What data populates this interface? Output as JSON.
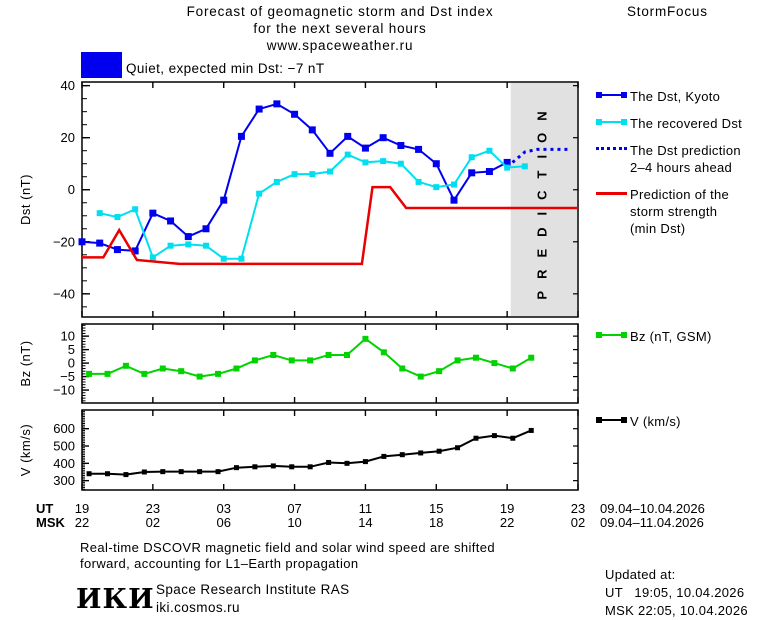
{
  "header": {
    "title_lines": [
      "Forecast of geomagnetic storm and Dst index",
      "for the next several hours",
      "www.spaceweather.ru"
    ],
    "brand": "StormFocus"
  },
  "banner": {
    "label": "Quiet, expected min Dst: −7 nT",
    "color": "#0000ef"
  },
  "legend": {
    "items": [
      {
        "label": "The Dst, Kyoto",
        "color": "#0000ef",
        "marker": "squares"
      },
      {
        "label": "The recovered Dst",
        "color": "#00dff0",
        "marker": "squares"
      },
      {
        "lines": [
          "The Dst prediction",
          "2–4 hours ahead"
        ],
        "color": "#0000ef",
        "marker": "dotted"
      },
      {
        "lines": [
          "Prediction of the",
          "storm strength",
          "(min Dst)"
        ],
        "color": "#ea0000",
        "marker": "line"
      },
      {
        "label": "Bz (nT, GSM)",
        "color": "#00d300",
        "marker": "squares"
      },
      {
        "label": "V (km/s)",
        "color": "#000000",
        "marker": "squares"
      }
    ]
  },
  "xaxis": {
    "ut_label": "UT",
    "msk_label": "MSK",
    "hours": [
      0,
      4,
      8,
      12,
      16,
      20,
      24,
      28
    ],
    "ut_ticks": [
      "19",
      "23",
      "03",
      "07",
      "11",
      "15",
      "19",
      "23"
    ],
    "msk_ticks": [
      "22",
      "02",
      "06",
      "10",
      "14",
      "18",
      "22",
      "02"
    ],
    "ut_range": "09.04–10.04.2026",
    "msk_range": "09.04–11.04.2026"
  },
  "chart_data": [
    {
      "type": "line",
      "ylabel": "Dst (nT)",
      "ylim": [
        -48.9,
        41.4
      ],
      "xlim_hours": [
        0,
        28
      ],
      "yticks": {
        "values": [
          40,
          20,
          0,
          -20,
          -40
        ],
        "labels": [
          "40",
          "20",
          "0",
          "−20",
          "−40"
        ],
        "minor_step": 5
      },
      "prediction_band": {
        "start_hour": 24.2,
        "end_hour": 28,
        "label": "PREDICTION",
        "fill": "#e1e1e1",
        "text_color": "#bdbdbd"
      },
      "series": [
        {
          "name": "The Dst, Kyoto",
          "color": "#0000ef",
          "marker_px": 7,
          "stroke_px": 2,
          "start_hour": 0,
          "step_hours": 1,
          "values": [
            -20,
            -20.5,
            -23,
            -23.5,
            -9,
            -12,
            -18,
            -15,
            -4,
            20.5,
            31,
            33,
            29,
            23,
            14,
            20.5,
            16,
            20,
            17,
            15.5,
            10,
            -4,
            6.5,
            7,
            10.5
          ]
        },
        {
          "name": "The recovered Dst",
          "color": "#00dff0",
          "marker_px": 6,
          "stroke_px": 2,
          "start_hour": 1,
          "step_hours": 1,
          "values": [
            -9,
            -10.5,
            -7.5,
            -26,
            -21.5,
            -21,
            -21.5,
            -26.5,
            -26.5,
            -1.5,
            3,
            6,
            6,
            7,
            13.5,
            10.5,
            11,
            10,
            3,
            1,
            2,
            12.5,
            15,
            8.5,
            9
          ]
        },
        {
          "name": "The Dst prediction 2–4 hours ahead",
          "color": "#0000ef",
          "style": "dotted",
          "stroke_px": 3,
          "points": [
            [
              24.3,
              10.5
            ],
            [
              25.0,
              14.5
            ],
            [
              25.7,
              15.5
            ],
            [
              27.4,
              15.5
            ]
          ]
        },
        {
          "name": "Prediction of the storm strength (min Dst)",
          "color": "#ea0000",
          "stroke_px": 2.5,
          "points": [
            [
              0,
              -26
            ],
            [
              1.2,
              -26
            ],
            [
              2.1,
              -15.5
            ],
            [
              3.1,
              -27
            ],
            [
              5.5,
              -28.5
            ],
            [
              15.8,
              -28.5
            ],
            [
              16.4,
              1
            ],
            [
              17.4,
              1
            ],
            [
              18.3,
              -7
            ],
            [
              28,
              -7
            ]
          ]
        }
      ]
    },
    {
      "type": "line",
      "ylabel": "Bz (nT)",
      "ylim": [
        -14.8,
        14.5
      ],
      "xlim_hours": [
        0,
        28
      ],
      "yticks": {
        "values": [
          10,
          5,
          0,
          -5,
          -10
        ],
        "labels": [
          "10",
          "5",
          "0",
          "−5",
          "−10"
        ],
        "minor_step": 1
      },
      "series": [
        {
          "name": "Bz (nT, GSM)",
          "color": "#00d300",
          "marker_px": 6,
          "stroke_px": 2,
          "start_hour": 0.4,
          "step_hours": 1.04,
          "values": [
            -4,
            -4,
            -1,
            -4,
            -2,
            -3,
            -5,
            -4,
            -2,
            1,
            3,
            1,
            1,
            3,
            3,
            9,
            4,
            -2,
            -5,
            -3,
            1,
            2,
            0,
            -2,
            2
          ]
        }
      ]
    },
    {
      "type": "line",
      "ylabel": "V (km/s)",
      "ylim": [
        246,
        708
      ],
      "xlim_hours": [
        0,
        28
      ],
      "yticks": {
        "values": [
          600,
          500,
          400,
          300
        ],
        "labels": [
          "600",
          "500",
          "400",
          "300"
        ],
        "minor_step": 10
      },
      "series": [
        {
          "name": "V (km/s)",
          "color": "#000000",
          "marker_px": 5,
          "stroke_px": 2,
          "start_hour": 0.4,
          "step_hours": 1.04,
          "values": [
            340,
            340,
            335,
            350,
            352,
            352,
            352,
            352,
            375,
            380,
            385,
            380,
            380,
            405,
            400,
            410,
            440,
            450,
            460,
            470,
            490,
            545,
            560,
            545,
            590
          ]
        }
      ]
    }
  ],
  "footnote": {
    "line1": "Real-time DSCOVR magnetic field and solar wind speed are shifted",
    "line2": "forward, accounting for L1–Earth propagation"
  },
  "footer": {
    "logo": "ИКИ",
    "org": "Space Research Institute RAS",
    "site": "iki.cosmos.ru",
    "updated_label": "Updated at:",
    "updated_ut": "UT   19:05, 10.04.2026",
    "updated_msk": "MSK 22:05, 10.04.2026"
  }
}
